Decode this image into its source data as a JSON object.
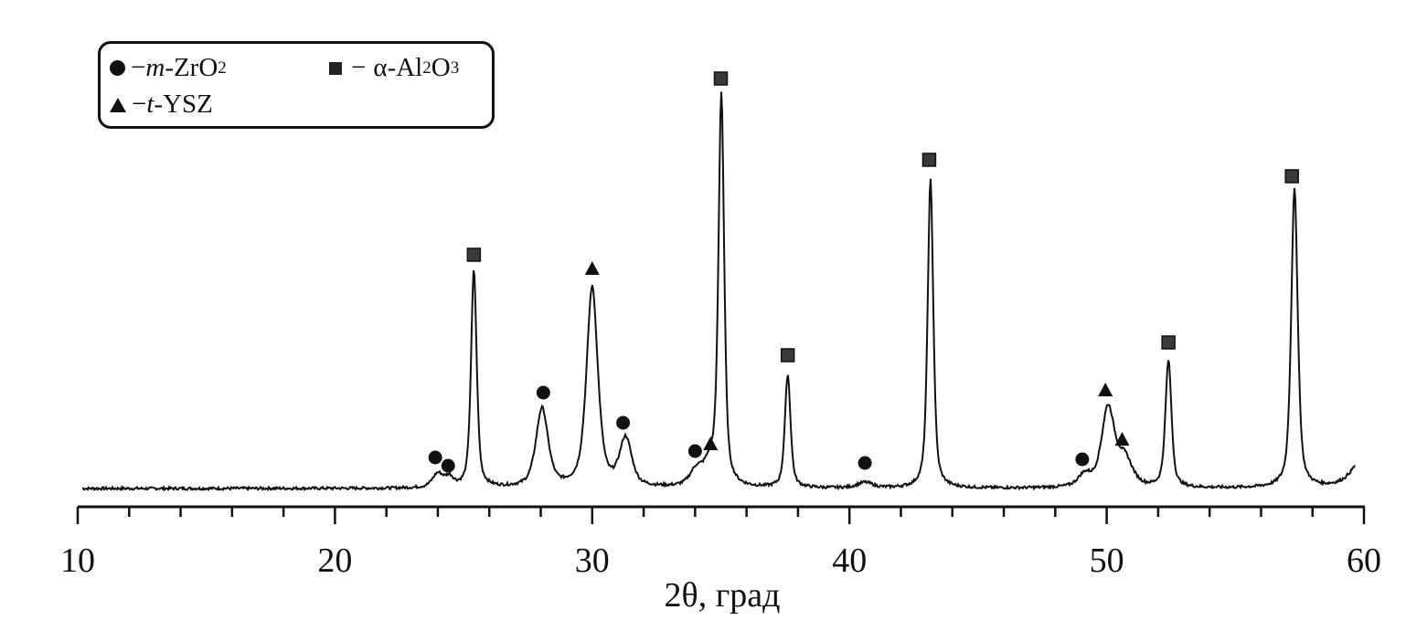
{
  "chart_data": {
    "type": "line",
    "title": "",
    "xlabel": "2θ, град",
    "ylabel": "",
    "xlim": [
      10,
      60
    ],
    "ylim": [
      0,
      450
    ],
    "x_major_ticks": [
      10,
      20,
      30,
      40,
      50,
      60
    ],
    "x_tick_labels": [
      "10",
      "20",
      "30",
      "40",
      "50",
      "60"
    ],
    "x_minor_step": 2,
    "grid": false,
    "legend_position": "top-left",
    "legend": [
      {
        "phase": "m",
        "symbol": "circle",
        "dash": "−",
        "prefix": "m",
        "formula": "-ZrO",
        "sub": "2",
        "suffix": ""
      },
      {
        "phase": "a",
        "symbol": "square",
        "dash": "−",
        "prefix": "α",
        "formula": "-Al",
        "sub": "2",
        "suffix": "O",
        "sub2": "3"
      },
      {
        "phase": "t",
        "symbol": "triangle",
        "dash": "−",
        "prefix": "t",
        "formula": "-YSZ"
      }
    ],
    "peaks": [
      {
        "two_theta": 24.0,
        "intensity": 15,
        "width": 0.25
      },
      {
        "two_theta": 24.45,
        "intensity": 10,
        "width": 0.2
      },
      {
        "two_theta": 25.4,
        "intensity": 238,
        "width": 0.13
      },
      {
        "two_theta": 28.05,
        "intensity": 86,
        "width": 0.28
      },
      {
        "two_theta": 30.0,
        "intensity": 219,
        "width": 0.26
      },
      {
        "two_theta": 31.3,
        "intensity": 52,
        "width": 0.28
      },
      {
        "two_theta": 34.05,
        "intensity": 17,
        "width": 0.3
      },
      {
        "two_theta": 34.6,
        "intensity": 22,
        "width": 0.3
      },
      {
        "two_theta": 35.02,
        "intensity": 427,
        "width": 0.13
      },
      {
        "two_theta": 37.6,
        "intensity": 124,
        "width": 0.13
      },
      {
        "two_theta": 40.6,
        "intensity": 6,
        "width": 0.35
      },
      {
        "two_theta": 43.15,
        "intensity": 338,
        "width": 0.13
      },
      {
        "two_theta": 49.15,
        "intensity": 13,
        "width": 0.3
      },
      {
        "two_theta": 50.05,
        "intensity": 86,
        "width": 0.3
      },
      {
        "two_theta": 50.7,
        "intensity": 30,
        "width": 0.35
      },
      {
        "two_theta": 52.4,
        "intensity": 139,
        "width": 0.14
      },
      {
        "two_theta": 57.3,
        "intensity": 327,
        "width": 0.15
      },
      {
        "two_theta": 60.2,
        "intensity": 45,
        "width": 0.6
      }
    ],
    "markers": [
      {
        "phase": "m",
        "two_theta": 23.9,
        "level": 34
      },
      {
        "phase": "m",
        "two_theta": 24.4,
        "level": 25
      },
      {
        "phase": "a",
        "two_theta": 25.4,
        "level": 256
      },
      {
        "phase": "m",
        "two_theta": 28.1,
        "level": 105
      },
      {
        "phase": "t",
        "two_theta": 30.0,
        "level": 241
      },
      {
        "phase": "m",
        "two_theta": 31.2,
        "level": 72
      },
      {
        "phase": "m",
        "two_theta": 34.0,
        "level": 41
      },
      {
        "phase": "t",
        "two_theta": 34.6,
        "level": 49
      },
      {
        "phase": "a",
        "two_theta": 35.0,
        "level": 449
      },
      {
        "phase": "a",
        "two_theta": 37.6,
        "level": 146
      },
      {
        "phase": "m",
        "two_theta": 40.6,
        "level": 28
      },
      {
        "phase": "a",
        "two_theta": 43.1,
        "level": 360
      },
      {
        "phase": "m",
        "two_theta": 49.05,
        "level": 32
      },
      {
        "phase": "t",
        "two_theta": 49.95,
        "level": 108
      },
      {
        "phase": "t",
        "two_theta": 50.6,
        "level": 54
      },
      {
        "phase": "a",
        "two_theta": 52.4,
        "level": 160
      },
      {
        "phase": "a",
        "two_theta": 57.2,
        "level": 342
      }
    ]
  }
}
